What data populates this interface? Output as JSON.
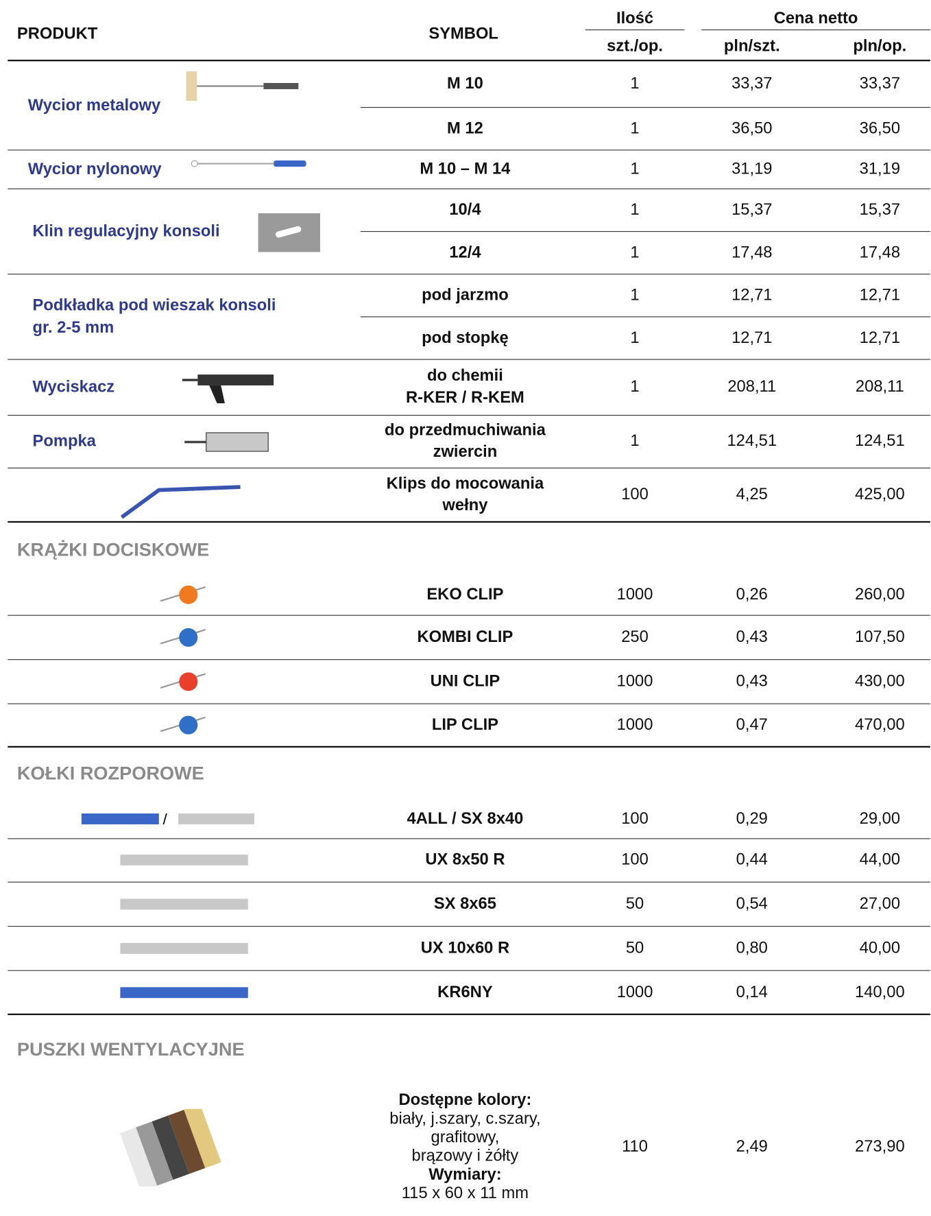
{
  "header": {
    "produkt": "PRODUKT",
    "symbol": "SYMBOL",
    "ilosc": "Ilość",
    "cena_netto": "Cena netto",
    "szt_op": "szt./op.",
    "pln_szt": "pln/szt.",
    "pln_op": "pln/op."
  },
  "sections": [
    {
      "groups": [
        {
          "product": [
            "Wycior metalowy"
          ],
          "items": [
            {
              "symbol": "M 10",
              "qty": 1,
              "price": "33,37",
              "pack": "33,37"
            },
            {
              "symbol": "M 12",
              "qty": 1,
              "price": "36,50",
              "pack": "36,50"
            }
          ]
        },
        {
          "product": [
            "Wycior nylonowy"
          ],
          "items": [
            {
              "symbol": "M 10 – M 14",
              "qty": 1,
              "price": "31,19",
              "pack": "31,19"
            }
          ]
        },
        {
          "product": [
            "Klin regulacyjny konsoli"
          ],
          "items": [
            {
              "symbol": "10/4",
              "qty": 1,
              "price": "15,37",
              "pack": "15,37"
            },
            {
              "symbol": "12/4",
              "qty": 1,
              "price": "17,48",
              "pack": "17,48"
            }
          ]
        },
        {
          "product": [
            "Podkładka pod wieszak konsoli",
            "gr. 2-5 mm"
          ],
          "items": [
            {
              "symbol": "pod jarzmo",
              "qty": 1,
              "price": "12,71",
              "pack": "12,71"
            },
            {
              "symbol": "pod stopkę",
              "qty": 1,
              "price": "12,71",
              "pack": "12,71"
            }
          ]
        },
        {
          "product": [
            "Wyciskacz"
          ],
          "items": [
            {
              "symbol": [
                "do chemii",
                "R-KER / R-KEM"
              ],
              "qty": 1,
              "price": "208,11",
              "pack": "208,11"
            }
          ]
        },
        {
          "product": [
            "Pompka"
          ],
          "items": [
            {
              "symbol": [
                "do przedmuchiwania",
                "zwiercin"
              ],
              "qty": 1,
              "price": "124,51",
              "pack": "124,51"
            }
          ]
        },
        {
          "items": [
            {
              "symbol": [
                "Klips do mocowania",
                "wełny"
              ],
              "qty": 100,
              "price": "4,25",
              "pack": "425,00"
            }
          ]
        }
      ]
    },
    {
      "title": "KRĄŻKI DOCISKOWE",
      "groups": [
        {
          "items": [
            {
              "symbol": "EKO CLIP",
              "qty": 1000,
              "price": "0,26",
              "pack": "260,00"
            }
          ]
        },
        {
          "items": [
            {
              "symbol": "KOMBI CLIP",
              "qty": 250,
              "price": "0,43",
              "pack": "107,50"
            }
          ]
        },
        {
          "items": [
            {
              "symbol": "UNI CLIP",
              "qty": 1000,
              "price": "0,43",
              "pack": "430,00"
            }
          ]
        },
        {
          "items": [
            {
              "symbol": "LIP CLIP",
              "qty": 1000,
              "price": "0,47",
              "pack": "470,00"
            }
          ]
        }
      ]
    },
    {
      "title": "KOŁKI ROZPOROWE",
      "groups": [
        {
          "items": [
            {
              "symbol": "4ALL / SX 8x40",
              "qty": 100,
              "price": "0,29",
              "pack": "29,00"
            }
          ]
        },
        {
          "items": [
            {
              "symbol": "UX 8x50 R",
              "qty": 100,
              "price": "0,44",
              "pack": "44,00"
            }
          ]
        },
        {
          "items": [
            {
              "symbol": "SX 8x65",
              "qty": 50,
              "price": "0,54",
              "pack": "27,00"
            }
          ]
        },
        {
          "items": [
            {
              "symbol": "UX 10x60 R",
              "qty": 50,
              "price": "0,80",
              "pack": "40,00"
            }
          ]
        },
        {
          "items": [
            {
              "symbol": "KR6NY",
              "qty": 1000,
              "price": "0,14",
              "pack": "140,00"
            }
          ]
        }
      ]
    },
    {
      "title": "PUSZKI WENTYLACYJNE",
      "groups": [
        {
          "items": [
            {
              "symbol": [
                "Dostępne kolory:",
                "biały, j.szary, c.szary,",
                "grafitowy,",
                "brązowy i żółty",
                "Wymiary:",
                "115 x 60 x 11 mm"
              ],
              "qty": 110,
              "price": "2,49",
              "pack": "273,90"
            }
          ]
        }
      ]
    }
  ]
}
